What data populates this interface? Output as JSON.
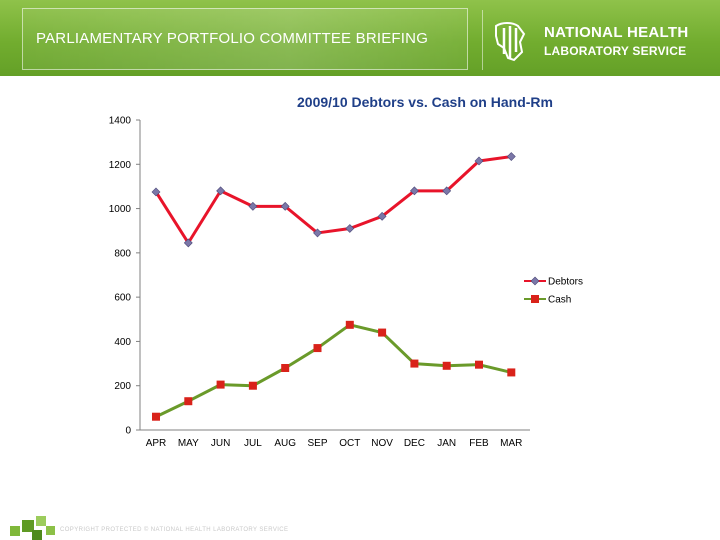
{
  "header": {
    "title": "PARLIAMENTARY PORTFOLIO COMMITTEE BRIEFING",
    "brand_line1": "NATIONAL HEALTH",
    "brand_line2": "LABORATORY SERVICE"
  },
  "footer": {
    "copyright": "COPYRIGHT PROTECTED © NATIONAL HEALTH LABORATORY SERVICE"
  },
  "colors": {
    "header_green": "#72ad2f",
    "title_blue": "#1f3f88",
    "debtors_line": "#e8142a",
    "debtors_marker": "#7b77a8",
    "cash_line": "#6a9a2a",
    "cash_marker": "#d9221a"
  },
  "chart_data": {
    "type": "line",
    "title": "2009/10 Debtors vs. Cash on Hand-Rm",
    "categories": [
      "APR",
      "MAY",
      "JUN",
      "JUL",
      "AUG",
      "SEP",
      "OCT",
      "NOV",
      "DEC",
      "JAN",
      "FEB",
      "MAR"
    ],
    "series": [
      {
        "name": "Debtors",
        "values": [
          1075,
          845,
          1080,
          1010,
          1010,
          890,
          910,
          965,
          1080,
          1080,
          1215,
          1235
        ]
      },
      {
        "name": "Cash",
        "values": [
          60,
          130,
          205,
          200,
          280,
          370,
          475,
          440,
          300,
          290,
          295,
          260
        ]
      }
    ],
    "ylim": [
      0,
      1400
    ],
    "yticks": [
      "0",
      "200",
      "400",
      "600",
      "800",
      "1000",
      "1200",
      "1400"
    ],
    "grid": false,
    "legend_position": "right"
  }
}
